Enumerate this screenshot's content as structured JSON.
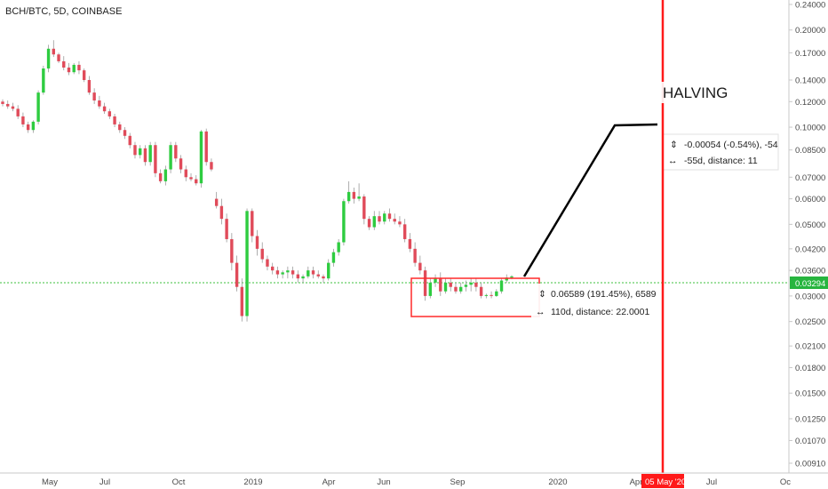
{
  "header": {
    "symbol": "BCH/BTC, 5D, COINBASE"
  },
  "colors": {
    "up": "#2ecc40",
    "down": "#e04b5a",
    "halving_line": "#ff1a1a",
    "price_line": "#3ec03e",
    "price_tag": "#27b53f",
    "note_box": "#ff2a2a"
  },
  "chart_data": {
    "type": "candlestick",
    "title": "BCH/BTC, 5D, COINBASE",
    "y_scale": "log",
    "y_ticks": [
      "0.24000",
      "0.20000",
      "0.17000",
      "0.14000",
      "0.12000",
      "0.10000",
      "0.08500",
      "0.07000",
      "0.06000",
      "0.05000",
      "0.04200",
      "0.03600",
      "0.03000",
      "0.02500",
      "0.02100",
      "0.01800",
      "0.01500",
      "0.01250",
      "0.01070",
      "0.00910"
    ],
    "x_ticks": [
      "May",
      "Jul",
      "Oct",
      "2019",
      "Apr",
      "Jun",
      "Sep",
      "2020",
      "Apr",
      "Jul",
      "Oc"
    ],
    "last_price": "0.03294",
    "candles": [
      [
        0.12,
        0.122,
        0.116,
        0.118
      ],
      [
        0.118,
        0.121,
        0.114,
        0.116
      ],
      [
        0.116,
        0.119,
        0.112,
        0.114
      ],
      [
        0.114,
        0.117,
        0.106,
        0.108
      ],
      [
        0.108,
        0.111,
        0.1,
        0.102
      ],
      [
        0.102,
        0.104,
        0.096,
        0.098
      ],
      [
        0.098,
        0.105,
        0.096,
        0.104
      ],
      [
        0.104,
        0.13,
        0.102,
        0.128
      ],
      [
        0.128,
        0.155,
        0.126,
        0.152
      ],
      [
        0.152,
        0.18,
        0.148,
        0.175
      ],
      [
        0.175,
        0.186,
        0.165,
        0.168
      ],
      [
        0.168,
        0.17,
        0.158,
        0.16
      ],
      [
        0.16,
        0.166,
        0.15,
        0.153
      ],
      [
        0.153,
        0.158,
        0.145,
        0.148
      ],
      [
        0.148,
        0.158,
        0.146,
        0.156
      ],
      [
        0.156,
        0.16,
        0.146,
        0.15
      ],
      [
        0.15,
        0.152,
        0.138,
        0.14
      ],
      [
        0.14,
        0.144,
        0.126,
        0.128
      ],
      [
        0.128,
        0.132,
        0.118,
        0.121
      ],
      [
        0.121,
        0.125,
        0.114,
        0.116
      ],
      [
        0.116,
        0.119,
        0.11,
        0.112
      ],
      [
        0.112,
        0.114,
        0.106,
        0.108
      ],
      [
        0.108,
        0.11,
        0.1,
        0.102
      ],
      [
        0.102,
        0.104,
        0.096,
        0.098
      ],
      [
        0.098,
        0.1,
        0.092,
        0.094
      ],
      [
        0.094,
        0.096,
        0.086,
        0.088
      ],
      [
        0.088,
        0.09,
        0.08,
        0.082
      ],
      [
        0.082,
        0.088,
        0.08,
        0.086
      ],
      [
        0.086,
        0.088,
        0.076,
        0.078
      ],
      [
        0.078,
        0.09,
        0.076,
        0.088
      ],
      [
        0.088,
        0.09,
        0.07,
        0.072
      ],
      [
        0.072,
        0.074,
        0.067,
        0.068
      ],
      [
        0.068,
        0.076,
        0.066,
        0.074
      ],
      [
        0.074,
        0.09,
        0.072,
        0.088
      ],
      [
        0.088,
        0.09,
        0.078,
        0.08
      ],
      [
        0.08,
        0.082,
        0.072,
        0.074
      ],
      [
        0.074,
        0.076,
        0.068,
        0.07
      ],
      [
        0.07,
        0.072,
        0.068,
        0.069
      ],
      [
        0.069,
        0.071,
        0.066,
        0.067
      ],
      [
        0.067,
        0.098,
        0.065,
        0.097
      ],
      [
        0.097,
        0.099,
        0.076,
        0.078
      ],
      [
        0.078,
        0.08,
        0.073,
        0.074
      ],
      [
        0.06,
        0.063,
        0.056,
        0.057
      ],
      [
        0.057,
        0.06,
        0.05,
        0.052
      ],
      [
        0.052,
        0.054,
        0.044,
        0.045
      ],
      [
        0.045,
        0.047,
        0.036,
        0.038
      ],
      [
        0.038,
        0.04,
        0.031,
        0.032
      ],
      [
        0.032,
        0.034,
        0.025,
        0.026
      ],
      [
        0.026,
        0.056,
        0.025,
        0.055
      ],
      [
        0.055,
        0.056,
        0.044,
        0.046
      ],
      [
        0.046,
        0.048,
        0.04,
        0.042
      ],
      [
        0.042,
        0.044,
        0.038,
        0.039
      ],
      [
        0.039,
        0.04,
        0.036,
        0.037
      ],
      [
        0.037,
        0.038,
        0.035,
        0.036
      ],
      [
        0.036,
        0.037,
        0.034,
        0.035
      ],
      [
        0.035,
        0.036,
        0.034,
        0.0355
      ],
      [
        0.0355,
        0.037,
        0.034,
        0.036
      ],
      [
        0.036,
        0.037,
        0.034,
        0.035
      ],
      [
        0.035,
        0.036,
        0.033,
        0.034
      ],
      [
        0.034,
        0.035,
        0.033,
        0.0345
      ],
      [
        0.0345,
        0.037,
        0.034,
        0.036
      ],
      [
        0.036,
        0.037,
        0.034,
        0.035
      ],
      [
        0.035,
        0.036,
        0.034,
        0.0345
      ],
      [
        0.0345,
        0.035,
        0.033,
        0.034
      ],
      [
        0.034,
        0.039,
        0.0335,
        0.038
      ],
      [
        0.038,
        0.042,
        0.037,
        0.041
      ],
      [
        0.041,
        0.045,
        0.04,
        0.044
      ],
      [
        0.044,
        0.06,
        0.043,
        0.059
      ],
      [
        0.059,
        0.068,
        0.058,
        0.063
      ],
      [
        0.063,
        0.065,
        0.058,
        0.06
      ],
      [
        0.06,
        0.067,
        0.059,
        0.061
      ],
      [
        0.061,
        0.062,
        0.05,
        0.052
      ],
      [
        0.052,
        0.053,
        0.048,
        0.049
      ],
      [
        0.049,
        0.055,
        0.048,
        0.053
      ],
      [
        0.053,
        0.055,
        0.05,
        0.051
      ],
      [
        0.051,
        0.055,
        0.05,
        0.054
      ],
      [
        0.054,
        0.056,
        0.051,
        0.052
      ],
      [
        0.052,
        0.054,
        0.05,
        0.051
      ],
      [
        0.051,
        0.053,
        0.049,
        0.05
      ],
      [
        0.05,
        0.052,
        0.044,
        0.045
      ],
      [
        0.045,
        0.047,
        0.041,
        0.042
      ],
      [
        0.042,
        0.044,
        0.037,
        0.038
      ],
      [
        0.038,
        0.04,
        0.035,
        0.036
      ],
      [
        0.036,
        0.037,
        0.029,
        0.03
      ],
      [
        0.03,
        0.034,
        0.0295,
        0.033
      ],
      [
        0.033,
        0.035,
        0.032,
        0.034
      ],
      [
        0.034,
        0.0355,
        0.03,
        0.031
      ],
      [
        0.031,
        0.034,
        0.0305,
        0.033
      ],
      [
        0.033,
        0.034,
        0.031,
        0.032
      ],
      [
        0.032,
        0.033,
        0.0305,
        0.031
      ],
      [
        0.031,
        0.033,
        0.0305,
        0.032
      ],
      [
        0.032,
        0.0335,
        0.031,
        0.0325
      ],
      [
        0.0325,
        0.034,
        0.031,
        0.033
      ],
      [
        0.033,
        0.034,
        0.031,
        0.032
      ],
      [
        0.032,
        0.033,
        0.0295,
        0.03
      ],
      [
        0.03,
        0.0305,
        0.0295,
        0.0302
      ],
      [
        0.0302,
        0.031,
        0.0295,
        0.03
      ],
      [
        0.03,
        0.0315,
        0.0298,
        0.031
      ],
      [
        0.031,
        0.034,
        0.0305,
        0.0335
      ],
      [
        0.0335,
        0.035,
        0.033,
        0.0342
      ],
      [
        0.0342,
        0.0348,
        0.0338,
        0.0345
      ]
    ],
    "halving": {
      "label": "HALVING",
      "date_label": "05 May '20"
    },
    "range_box": {
      "line1": "0.06589 (191.45%), 6589",
      "line2": "110d, distance: 22.0001"
    },
    "projection_box": {
      "line1": "-0.00054 (-0.54%), -54",
      "line2": "-55d, distance: 11"
    }
  }
}
